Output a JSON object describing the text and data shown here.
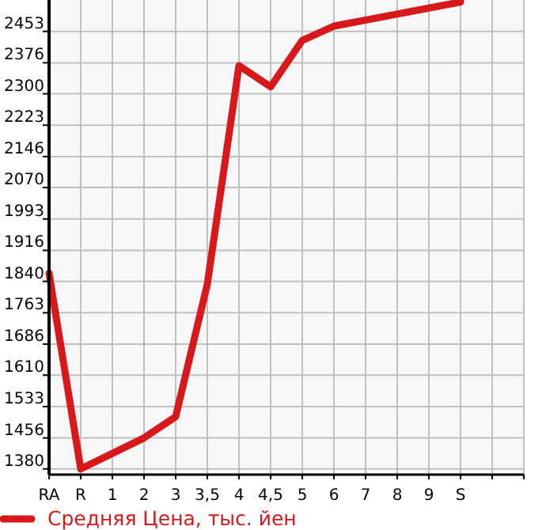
{
  "chart_data": {
    "type": "line",
    "categories": [
      "RA",
      "R",
      "1",
      "2",
      "3",
      "3,5",
      "4",
      "4,5",
      "5",
      "6",
      "7",
      "8",
      "9",
      "S",
      null,
      null
    ],
    "series": [
      {
        "name": "Средняя Цена, тыс. йен",
        "color": "#d7191c",
        "values": [
          1860,
          1380,
          null,
          1456,
          1508,
          1833,
          2369,
          2317,
          2431,
          2466,
          null,
          null,
          null,
          2525,
          null,
          null
        ]
      }
    ],
    "ylim": [
      1366,
      2530
    ],
    "yticks": [
      1380,
      1456,
      1533,
      1610,
      1686,
      1763,
      1840,
      1916,
      1993,
      2070,
      2146,
      2223,
      2300,
      2376,
      2453
    ],
    "grid": true,
    "legend": "bottom left",
    "marker": "none",
    "line_style": "solid"
  }
}
